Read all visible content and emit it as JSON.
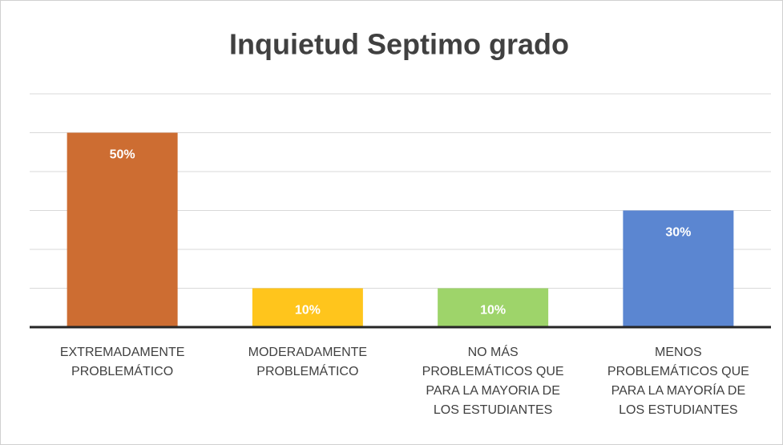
{
  "chart_data": {
    "type": "bar",
    "title": "Inquietud Septimo grado",
    "categories": [
      "EXTREMADAMENTE PROBLEMÁTICO",
      "MODERADAMENTE PROBLEMÁTICO",
      "NO MÁS PROBLEMÁTICOS QUE PARA LA MAYORIA DE LOS ESTUDIANTES",
      "MENOS PROBLEMÁTICOS QUE PARA LA MAYORÍA DE LOS ESTUDIANTES"
    ],
    "values": [
      50,
      10,
      10,
      30
    ],
    "value_labels": [
      "50%",
      "10%",
      "10%",
      "30%"
    ],
    "colors": [
      "#cd6d32",
      "#ffc51c",
      "#9ed46a",
      "#5b86d1"
    ],
    "ylim": [
      0,
      60
    ],
    "yticks": [
      0,
      10,
      20,
      30,
      40,
      50,
      60
    ],
    "grid": true
  }
}
